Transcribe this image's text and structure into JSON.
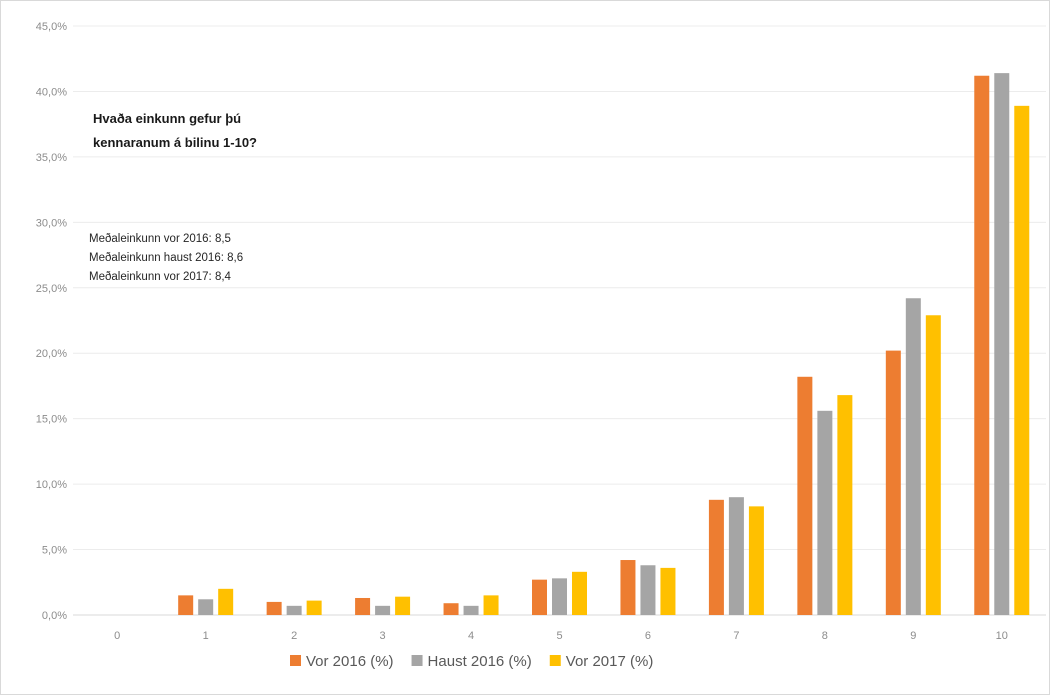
{
  "chart_data": {
    "type": "bar",
    "title_lines": [
      "Hvaða einkunn gefur þú",
      "kennaranum á bilinu 1-10?"
    ],
    "annotations": [
      "Meðaleinkunn vor 2016: 8,5",
      "Meðaleinkunn haust 2016: 8,6",
      "Meðaleinkunn vor 2017: 8,4"
    ],
    "categories": [
      "0",
      "1",
      "2",
      "3",
      "4",
      "5",
      "6",
      "7",
      "8",
      "9",
      "10"
    ],
    "series": [
      {
        "name": "Vor 2016 (%)",
        "color": "#ED7D31",
        "values": [
          0,
          1.5,
          1.0,
          1.3,
          0.9,
          2.7,
          4.2,
          8.8,
          18.2,
          20.2,
          41.2
        ]
      },
      {
        "name": "Haust 2016 (%)",
        "color": "#A5A5A5",
        "values": [
          0,
          1.2,
          0.7,
          0.7,
          0.7,
          2.8,
          3.8,
          9.0,
          15.6,
          24.2,
          41.4
        ]
      },
      {
        "name": "Vor 2017 (%)",
        "color": "#FFC000",
        "values": [
          0,
          2.0,
          1.1,
          1.4,
          1.5,
          3.3,
          3.6,
          8.3,
          16.8,
          22.9,
          38.9
        ]
      }
    ],
    "y_ticks": [
      "0,0%",
      "5,0%",
      "10,0%",
      "15,0%",
      "20,0%",
      "25,0%",
      "30,0%",
      "35,0%",
      "40,0%",
      "45,0%"
    ],
    "ylim": [
      0,
      45
    ],
    "grid": true,
    "legend_position": "bottom"
  }
}
